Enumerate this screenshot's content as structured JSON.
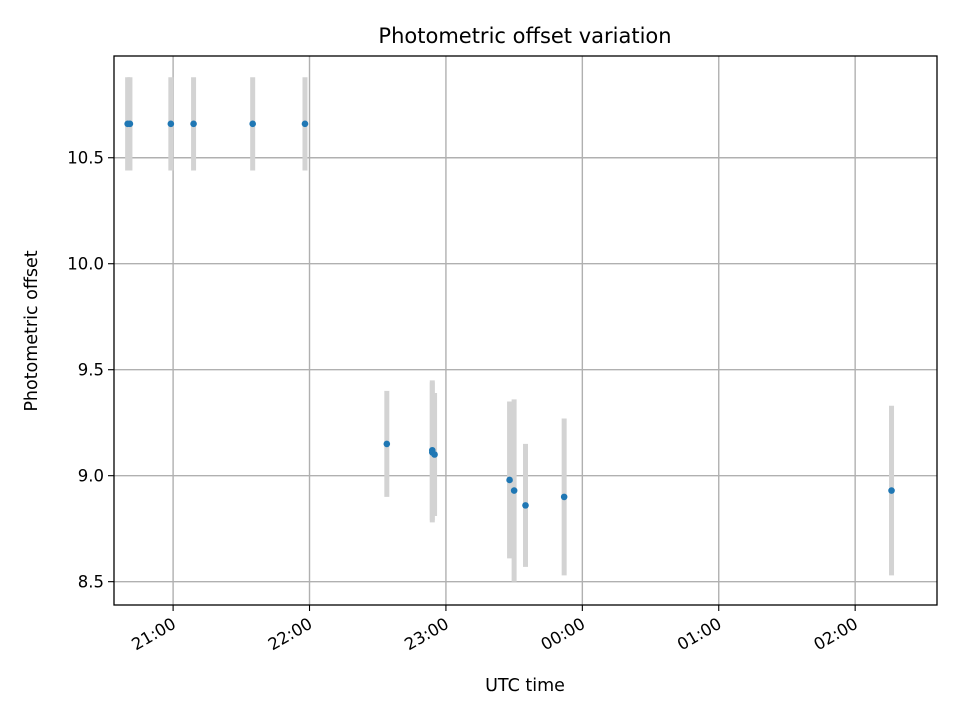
{
  "chart_data": {
    "type": "scatter",
    "title": "Photometric offset variation",
    "xlabel": "UTC time",
    "ylabel": "Photometric offset",
    "x_is_time": true,
    "x_range": [
      "20:34",
      "02:36"
    ],
    "ylim": [
      8.39,
      10.98
    ],
    "x_ticks": [
      "21:00",
      "22:00",
      "23:00",
      "00:00",
      "01:00",
      "02:00"
    ],
    "y_ticks": [
      8.5,
      9.0,
      9.5,
      10.0,
      10.5
    ],
    "y_tick_labels": [
      "8.5",
      "9.0",
      "9.5",
      "10.0",
      "10.5"
    ],
    "grid": true,
    "marker_color": "#1f77b4",
    "errorbar_color": "#d3d3d3",
    "points": [
      {
        "time": "20:40",
        "y": 10.66,
        "yerr": 0.22
      },
      {
        "time": "20:41",
        "y": 10.66,
        "yerr": 0.22
      },
      {
        "time": "20:59",
        "y": 10.66,
        "yerr": 0.22
      },
      {
        "time": "21:09",
        "y": 10.66,
        "yerr": 0.22
      },
      {
        "time": "21:35",
        "y": 10.66,
        "yerr": 0.22
      },
      {
        "time": "21:58",
        "y": 10.66,
        "yerr": 0.22
      },
      {
        "time": "22:34",
        "y": 9.15,
        "yerr": 0.25
      },
      {
        "time": "22:54",
        "y": 9.11,
        "yerr": 0.33
      },
      {
        "time": "22:54",
        "y": 9.12,
        "yerr": 0.33
      },
      {
        "time": "22:55",
        "y": 9.1,
        "yerr": 0.29
      },
      {
        "time": "23:28",
        "y": 8.98,
        "yerr": 0.37
      },
      {
        "time": "23:30",
        "y": 8.93,
        "yerr": 0.43
      },
      {
        "time": "23:35",
        "y": 8.86,
        "yerr": 0.29
      },
      {
        "time": "23:52",
        "y": 8.9,
        "yerr": 0.37
      },
      {
        "time": "02:16",
        "y": 8.93,
        "yerr": 0.4
      }
    ]
  }
}
